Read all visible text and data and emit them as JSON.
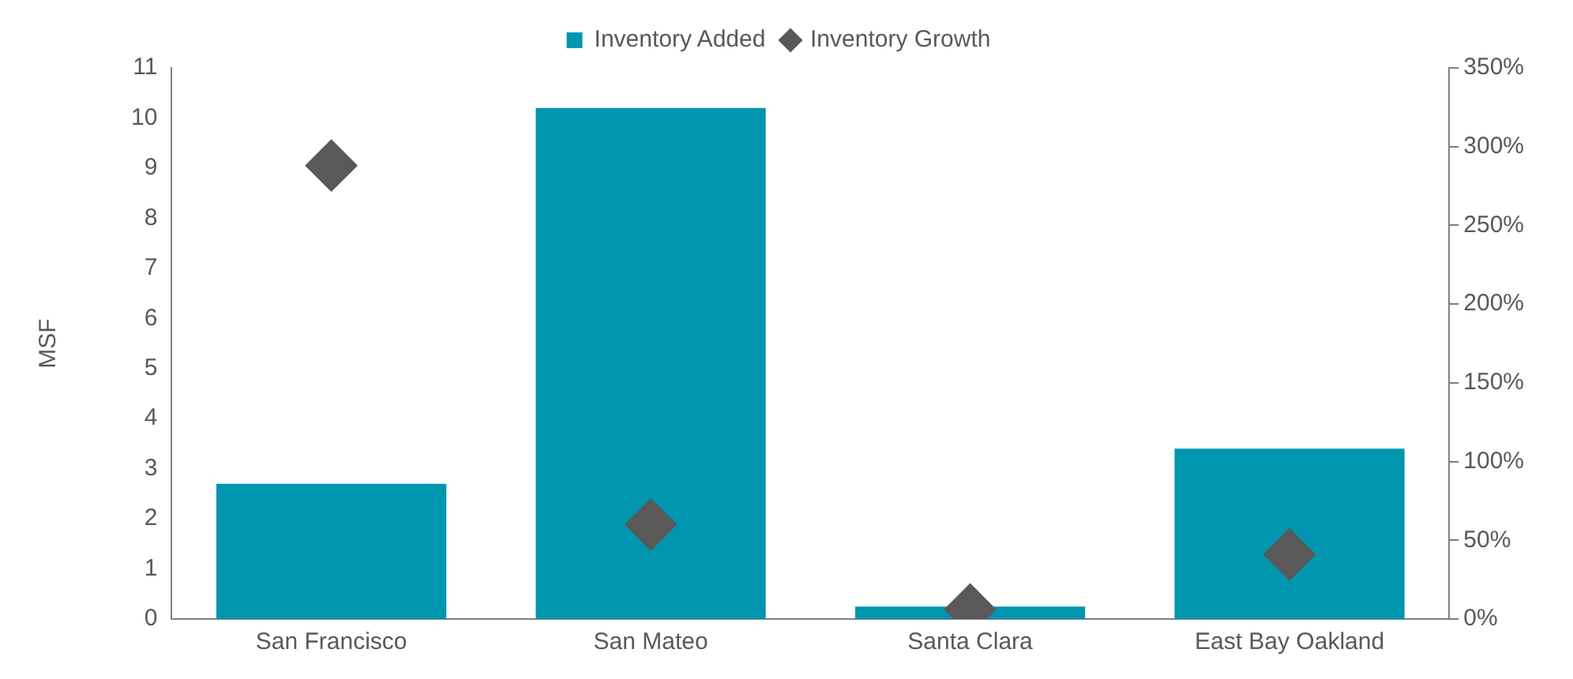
{
  "chart_data": {
    "type": "bar",
    "categories": [
      "San Francisco",
      "San Mateo",
      "Santa Clara",
      "East Bay Oakland"
    ],
    "ylabel": "MSF",
    "ylim": [
      0,
      11
    ],
    "yticks": [
      0,
      1,
      2,
      3,
      4,
      5,
      6,
      7,
      8,
      9,
      10,
      11
    ],
    "y2lim": [
      0,
      350
    ],
    "y2ticks": [
      {
        "value": 0,
        "label": "0%"
      },
      {
        "value": 50,
        "label": "50%"
      },
      {
        "value": 100,
        "label": "100%"
      },
      {
        "value": 150,
        "label": "150%"
      },
      {
        "value": 200,
        "label": "200%"
      },
      {
        "value": 250,
        "label": "250%"
      },
      {
        "value": 300,
        "label": "300%"
      },
      {
        "value": 350,
        "label": "350%"
      }
    ],
    "series": [
      {
        "name": "Inventory Added",
        "color": "#0096b0",
        "values": [
          2.7,
          10.2,
          0.25,
          3.4
        ]
      },
      {
        "name": "Inventory Growth",
        "type": "scatter",
        "axis": "y2",
        "marker": "diamond",
        "color": "#595959",
        "values": [
          288,
          60,
          6,
          41
        ]
      }
    ],
    "legend": "top",
    "grid": false
  }
}
